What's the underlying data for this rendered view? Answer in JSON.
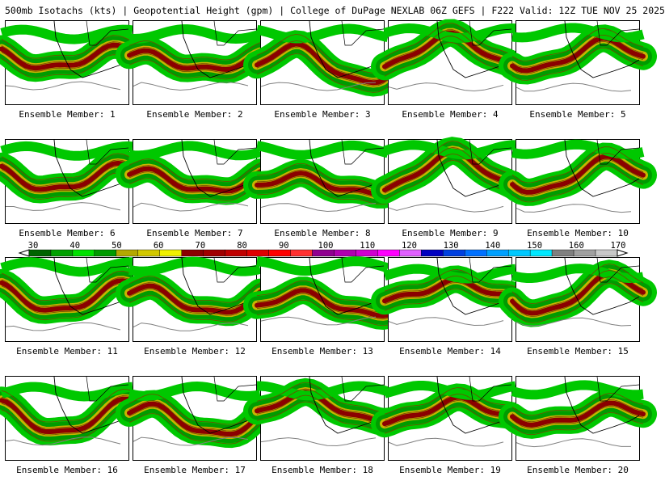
{
  "title": "500mb Isotachs (kts) | Geopotential Height (gpm) | College of DuPage NEXLAB   06Z GEFS | F222 Valid: 12Z TUE NOV 25 2025",
  "colorbar": {
    "ticks": [
      "30",
      "40",
      "50",
      "60",
      "70",
      "80",
      "90",
      "100",
      "110",
      "120",
      "130",
      "140",
      "150",
      "160",
      "170"
    ],
    "colors": [
      "#006400",
      "#00a000",
      "#00e000",
      "#009b00",
      "#b4a800",
      "#d2c800",
      "#f0f000",
      "#8b0000",
      "#a00000",
      "#c00000",
      "#e00000",
      "#ff0000",
      "#ff3030",
      "#900090",
      "#b000b0",
      "#d000d0",
      "#ff00ff",
      "#e060ff",
      "#0000c0",
      "#0040e0",
      "#0070ff",
      "#00a0ff",
      "#00c8ff",
      "#00e8ff",
      "#808080",
      "#a0a0a0",
      "#c8c8c8"
    ]
  },
  "members": [
    {
      "label": "Ensemble Member: 1"
    },
    {
      "label": "Ensemble Member: 2"
    },
    {
      "label": "Ensemble Member: 3"
    },
    {
      "label": "Ensemble Member: 4"
    },
    {
      "label": "Ensemble Member: 5"
    },
    {
      "label": "Ensemble Member: 6"
    },
    {
      "label": "Ensemble Member: 7"
    },
    {
      "label": "Ensemble Member: 8"
    },
    {
      "label": "Ensemble Member: 9"
    },
    {
      "label": "Ensemble Member: 10"
    },
    {
      "label": "Ensemble Member: 11"
    },
    {
      "label": "Ensemble Member: 12"
    },
    {
      "label": "Ensemble Member: 13"
    },
    {
      "label": "Ensemble Member: 14"
    },
    {
      "label": "Ensemble Member: 15"
    },
    {
      "label": "Ensemble Member: 16"
    },
    {
      "label": "Ensemble Member: 17"
    },
    {
      "label": "Ensemble Member: 18"
    },
    {
      "label": "Ensemble Member: 19"
    },
    {
      "label": "Ensemble Member: 20"
    }
  ]
}
